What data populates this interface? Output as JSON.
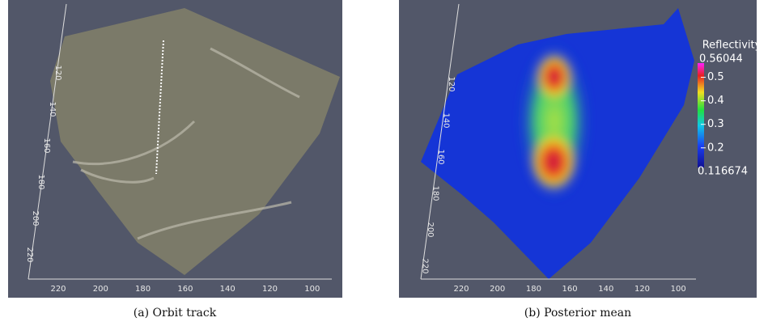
{
  "panels": [
    {
      "caption": "(a) Orbit track",
      "y_ticks": [
        120,
        140,
        160,
        180,
        200,
        220
      ],
      "x_ticks": [
        220,
        200,
        180,
        160,
        140,
        120,
        100
      ]
    },
    {
      "caption": "(b) Posterior mean",
      "y_ticks": [
        120,
        140,
        160,
        180,
        200,
        220
      ],
      "x_ticks": [
        220,
        200,
        180,
        160,
        140,
        120,
        100
      ],
      "colorbar": {
        "title": "Reflectivity",
        "max": 0.56044,
        "min": 0.116674,
        "ticks": [
          0.5,
          0.4,
          0.3,
          0.2
        ]
      }
    }
  ]
}
